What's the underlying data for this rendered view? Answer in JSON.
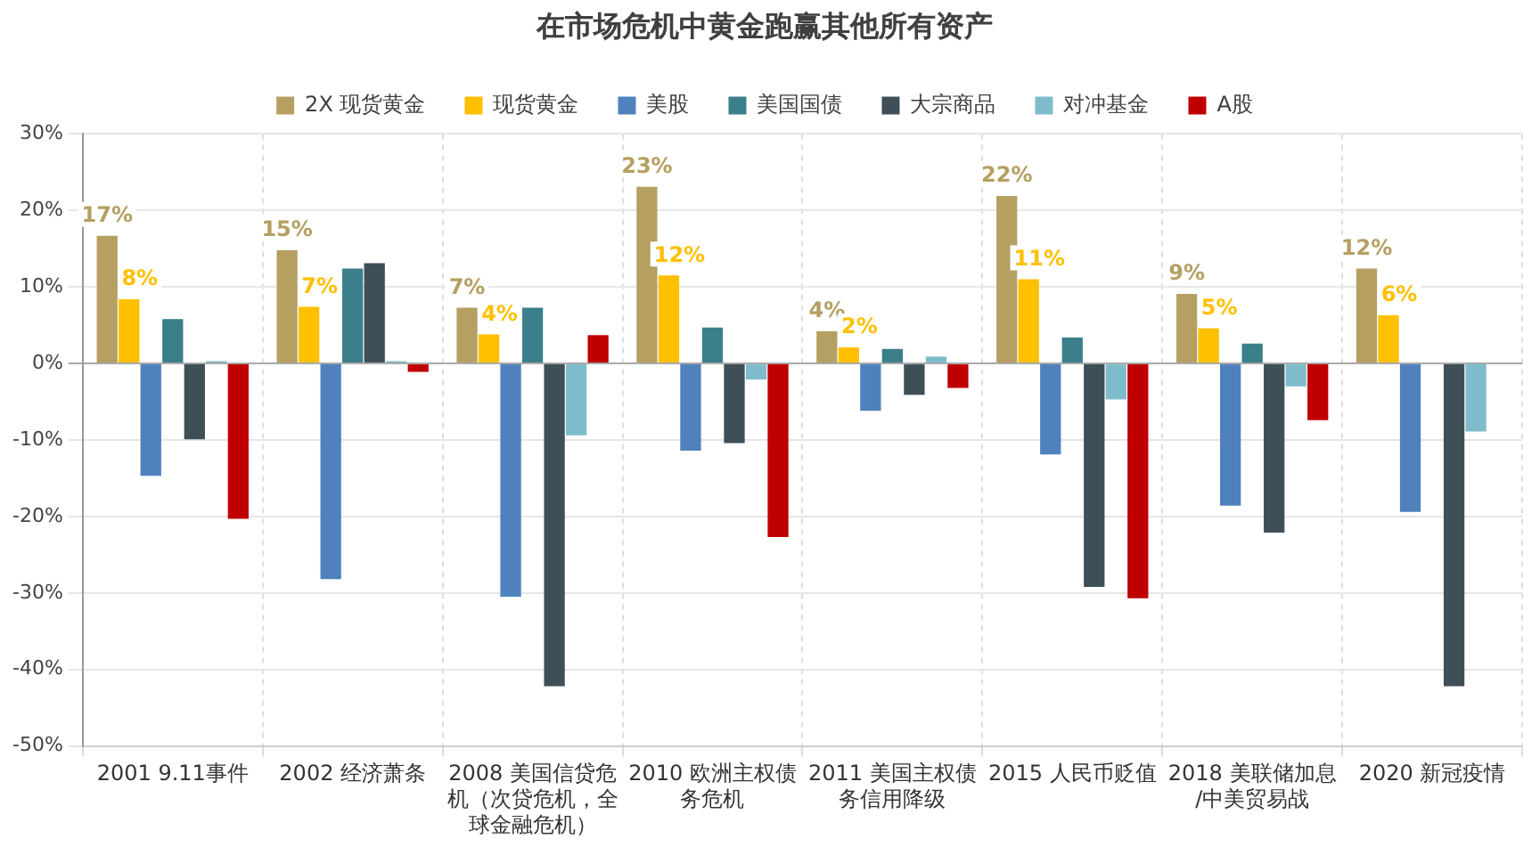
{
  "chart_data": {
    "type": "bar",
    "title": "在市场危机中黄金跑赢其他所有资产",
    "categories": [
      "2001 9.11事件",
      "2002 经济萧条",
      "2008 美国信贷危机（次贷危机，全球金融危机）",
      "2010 欧洲主权债务危机",
      "2011 美国主权债务信用降级",
      "2015 人民币贬值",
      "2018 美联储加息/中美贸易战",
      "2020 新冠疫情"
    ],
    "series": [
      {
        "name": "2X 现货黄金",
        "color": "#b5a062",
        "values": [
          16.7,
          14.8,
          7.3,
          23.1,
          4.2,
          21.9,
          9.1,
          12.4
        ],
        "value_labels": [
          "17%",
          "15%",
          "7%",
          "23%",
          "4%",
          "22%",
          "9%",
          "12%"
        ]
      },
      {
        "name": "现货黄金",
        "color": "#ffc000",
        "values": [
          8.4,
          7.4,
          3.8,
          11.5,
          2.1,
          11.0,
          4.6,
          6.3
        ],
        "value_labels": [
          "8%",
          "7%",
          "4%",
          "12%",
          "2%",
          "11%",
          "5%",
          "6%"
        ]
      },
      {
        "name": "美股",
        "color": "#4f81bd",
        "values": [
          -14.7,
          -28.2,
          -30.5,
          -11.4,
          -6.2,
          -11.9,
          -18.6,
          -19.4
        ]
      },
      {
        "name": "美国国债",
        "color": "#3b7f8a",
        "values": [
          5.8,
          12.4,
          7.3,
          4.7,
          1.9,
          3.4,
          2.6,
          null
        ]
      },
      {
        "name": "大宗商品",
        "color": "#3f4f57",
        "values": [
          -9.9,
          13.1,
          -42.2,
          -10.4,
          -4.1,
          -29.2,
          -22.1,
          -42.2
        ]
      },
      {
        "name": "对冲基金",
        "color": "#7fbccb",
        "values": [
          0.3,
          0.3,
          -9.4,
          -2.1,
          0.9,
          -4.7,
          -3.0,
          -8.9
        ]
      },
      {
        "name": "A股",
        "color": "#c00000",
        "values": [
          -20.3,
          -1.1,
          3.7,
          -22.7,
          -3.2,
          -30.7,
          -7.4,
          null
        ]
      }
    ],
    "ylim": [
      -50,
      30
    ],
    "yticks": [
      {
        "value": -50,
        "label": "-50%"
      },
      {
        "value": -40,
        "label": "-40%"
      },
      {
        "value": -30,
        "label": "-30%"
      },
      {
        "value": -20,
        "label": "-20%"
      },
      {
        "value": -10,
        "label": "-10%"
      },
      {
        "value": 0,
        "label": "0%"
      },
      {
        "value": 10,
        "label": "10%"
      },
      {
        "value": 20,
        "label": "20%"
      },
      {
        "value": 30,
        "label": "30%"
      }
    ],
    "grid": true,
    "legend": "top"
  }
}
